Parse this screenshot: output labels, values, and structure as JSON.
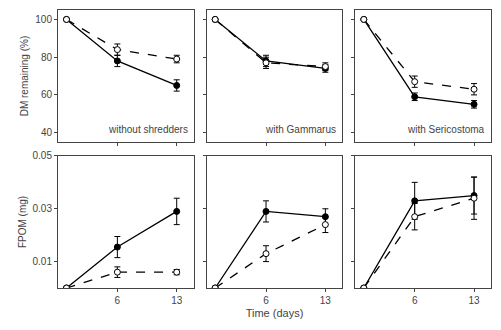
{
  "chart_data": [
    {
      "type": "line",
      "x": [
        0,
        6,
        13
      ],
      "series": [
        {
          "color": "#000000",
          "marker": "filled_circle",
          "line_style": "solid",
          "values": [
            100,
            78,
            65
          ],
          "errors": [
            0,
            3,
            3
          ]
        },
        {
          "color": "#000000",
          "marker": "open_circle",
          "line_style": "dashed",
          "values": [
            100,
            84,
            79
          ],
          "errors": [
            0,
            3,
            2
          ]
        }
      ],
      "xlim": [
        -1,
        15
      ],
      "xticks": [
        6,
        13
      ],
      "ylim": [
        35,
        105
      ],
      "yticks": [
        40,
        60,
        80,
        100
      ],
      "ylabel": "DM remaining (%)",
      "annotation": "without shredders",
      "tick_labels": "y",
      "grid": false
    },
    {
      "type": "line",
      "x": [
        0,
        6,
        13
      ],
      "series": [
        {
          "color": "#000000",
          "marker": "filled_circle",
          "line_style": "solid",
          "values": [
            100,
            78,
            74
          ],
          "errors": [
            0,
            3,
            2
          ]
        },
        {
          "color": "#000000",
          "marker": "open_circle",
          "line_style": "dashed",
          "values": [
            100,
            77,
            75
          ],
          "errors": [
            0,
            3,
            2
          ]
        }
      ],
      "xlim": [
        -1,
        15
      ],
      "xticks": [
        6,
        13
      ],
      "ylim": [
        35,
        105
      ],
      "yticks": [
        40,
        60,
        80,
        100
      ],
      "annotation": "with Gammarus",
      "tick_labels": false,
      "grid": false
    },
    {
      "type": "line",
      "x": [
        0,
        6,
        13
      ],
      "series": [
        {
          "color": "#000000",
          "marker": "filled_circle",
          "line_style": "solid",
          "values": [
            100,
            59,
            55
          ],
          "errors": [
            0,
            2,
            2
          ]
        },
        {
          "color": "#000000",
          "marker": "open_circle",
          "line_style": "dashed",
          "values": [
            100,
            67,
            63
          ],
          "errors": [
            0,
            3,
            3
          ]
        }
      ],
      "xlim": [
        -1,
        15
      ],
      "xticks": [
        6,
        13
      ],
      "ylim": [
        35,
        105
      ],
      "yticks": [
        40,
        60,
        80,
        100
      ],
      "annotation": "with Sericostoma",
      "tick_labels": false,
      "grid": false
    },
    {
      "type": "line",
      "x": [
        0,
        6,
        13
      ],
      "series": [
        {
          "color": "#000000",
          "marker": "filled_circle",
          "line_style": "solid",
          "values": [
            0,
            0.0155,
            0.029
          ],
          "errors": [
            0,
            0.004,
            0.005
          ]
        },
        {
          "color": "#000000",
          "marker": "open_circle",
          "line_style": "dashed",
          "values": [
            0,
            0.006,
            0.006
          ],
          "errors": [
            0,
            0.002,
            0.001
          ]
        }
      ],
      "xlim": [
        -1,
        15
      ],
      "xticks": [
        6,
        13
      ],
      "ylim": [
        0,
        0.05
      ],
      "yticks": [
        0.01,
        0.03,
        0.05
      ],
      "ylabel": "FPOM (mg)",
      "grid": false
    },
    {
      "type": "line",
      "x": [
        0,
        6,
        13
      ],
      "series": [
        {
          "color": "#000000",
          "marker": "filled_circle",
          "line_style": "solid",
          "values": [
            0,
            0.029,
            0.027
          ],
          "errors": [
            0,
            0.004,
            0.003
          ]
        },
        {
          "color": "#000000",
          "marker": "open_circle",
          "line_style": "dashed",
          "values": [
            0,
            0.013,
            0.024
          ],
          "errors": [
            0,
            0.003,
            0.003
          ]
        }
      ],
      "xlim": [
        -1,
        15
      ],
      "xticks": [
        6,
        13
      ],
      "ylim": [
        0,
        0.05
      ],
      "yticks": [
        0.01,
        0.03,
        0.05
      ],
      "xlabel": "Time (days)",
      "tick_labels": "x",
      "grid": false
    },
    {
      "type": "line",
      "x": [
        0,
        6,
        13
      ],
      "series": [
        {
          "color": "#000000",
          "marker": "filled_circle",
          "line_style": "solid",
          "values": [
            0,
            0.033,
            0.035
          ],
          "errors": [
            0,
            0.007,
            0.007
          ]
        },
        {
          "color": "#000000",
          "marker": "open_circle",
          "line_style": "dashed",
          "values": [
            0,
            0.027,
            0.034
          ],
          "errors": [
            0,
            0.005,
            0.008
          ]
        }
      ],
      "xlim": [
        -1,
        15
      ],
      "xticks": [
        6,
        13
      ],
      "ylim": [
        0,
        0.05
      ],
      "yticks": [
        0.01,
        0.03,
        0.05
      ],
      "tick_labels": "x",
      "grid": false
    }
  ]
}
